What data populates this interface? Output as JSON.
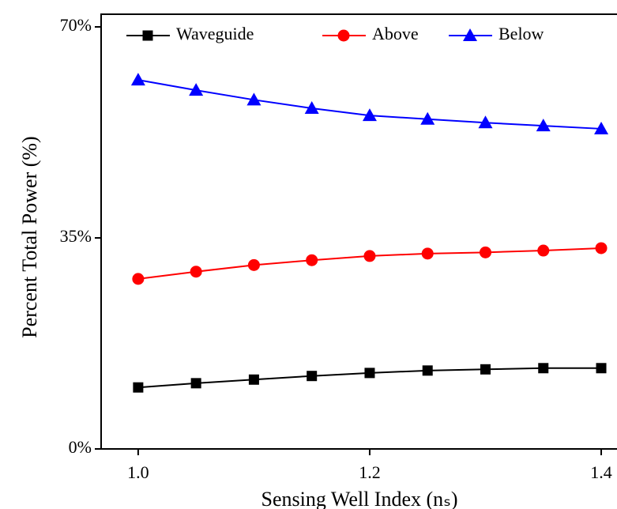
{
  "chart_data": {
    "type": "line",
    "x_label": "Sensing Well Index (nₛ)",
    "y_label": "Percent Total Power (%)",
    "x": [
      1.0,
      1.05,
      1.1,
      1.15,
      1.2,
      1.25,
      1.3,
      1.35,
      1.4
    ],
    "series": [
      {
        "name": "Waveguide",
        "color": "#000000",
        "marker": "square",
        "values": [
          10.2,
          10.9,
          11.5,
          12.1,
          12.6,
          13.0,
          13.2,
          13.4,
          13.4
        ]
      },
      {
        "name": "Above",
        "color": "#ff0000",
        "marker": "circle",
        "values": [
          28.2,
          29.4,
          30.5,
          31.3,
          32.0,
          32.4,
          32.6,
          32.9,
          33.3
        ]
      },
      {
        "name": "Below",
        "color": "#0000ff",
        "marker": "triangle",
        "values": [
          61.2,
          59.5,
          57.9,
          56.5,
          55.3,
          54.7,
          54.1,
          53.6,
          53.1
        ]
      }
    ],
    "xlim": [
      0.968,
      1.415
    ],
    "xticks": [
      {
        "value": 1.0,
        "label": "1.0"
      },
      {
        "value": 1.2,
        "label": "1.2"
      },
      {
        "value": 1.4,
        "label": "1.4"
      }
    ],
    "ylim": [
      0,
      72.1
    ],
    "yticks": [
      {
        "value": 0,
        "label": "0%"
      },
      {
        "value": 35,
        "label": "35%"
      },
      {
        "value": 70,
        "label": "70%"
      }
    ],
    "grid": false,
    "legend": "top"
  }
}
